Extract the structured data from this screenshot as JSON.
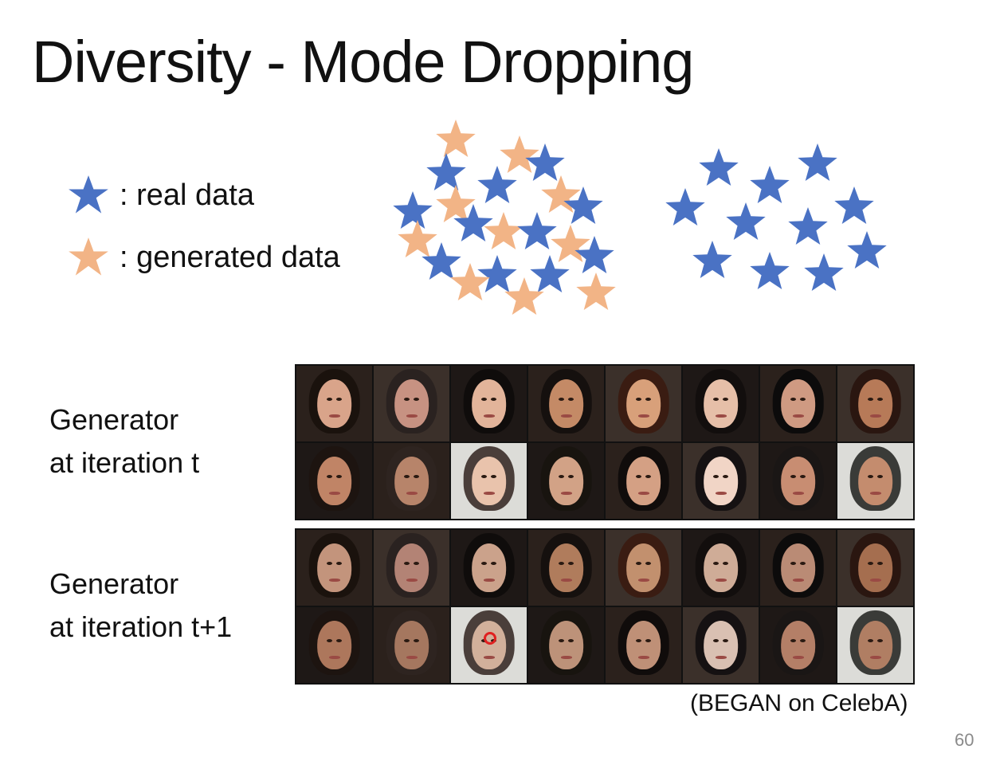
{
  "title": "Diversity - Mode Dropping",
  "legend": {
    "real": {
      "label": ": real data",
      "color": "#4a72c4",
      "icon": "star-icon"
    },
    "generated": {
      "label": ": generated data",
      "color": "#f2b486",
      "icon": "star-icon"
    }
  },
  "generators": [
    {
      "line1": "Generator",
      "line2": "at iteration t"
    },
    {
      "line1": "Generator",
      "line2": "at iteration t+1"
    }
  ],
  "caption": "(BEGAN on CelebA)",
  "page_number": "60",
  "colors": {
    "real": "#4a72c4",
    "generated": "#f2b486",
    "highlight": "#e02020"
  }
}
